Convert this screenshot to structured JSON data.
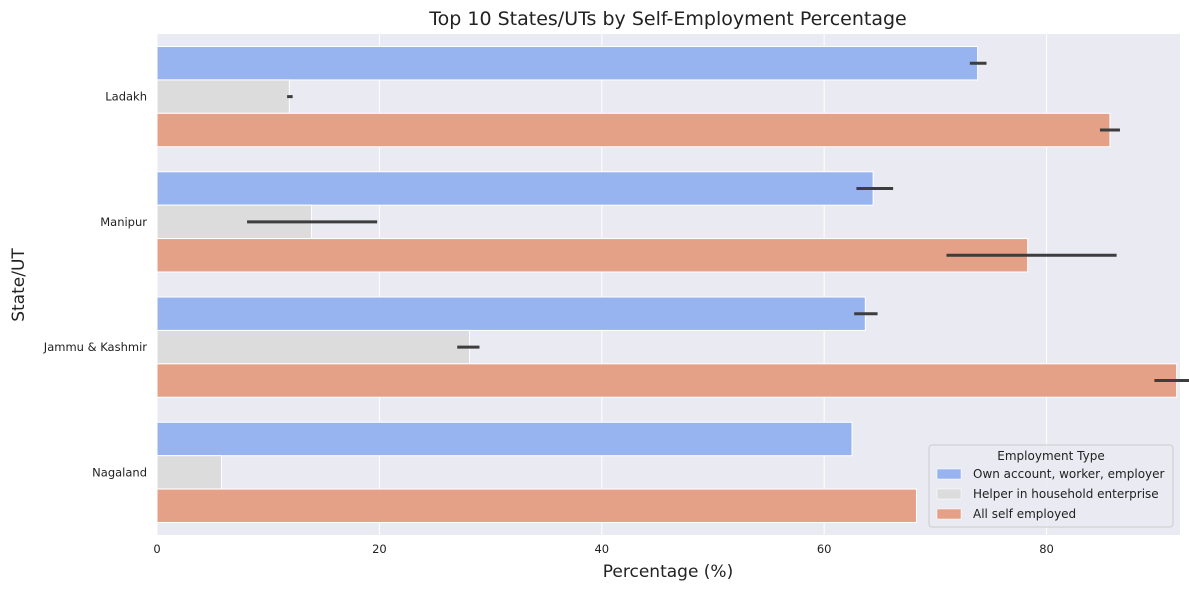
{
  "chart_data": {
    "type": "bar",
    "orientation": "horizontal",
    "title": "Top 10 States/UTs by Self-Employment Percentage",
    "xlabel": "Percentage (%)",
    "ylabel": "State/UT",
    "xlim": [
      0,
      92
    ],
    "xticks": [
      0,
      20,
      40,
      60,
      80
    ],
    "grid": true,
    "categories": [
      "Ladakh",
      "Manipur",
      "Jammu & Kashmir",
      "Nagaland"
    ],
    "series": [
      {
        "name": "Own account, worker, employer",
        "color": "#97b4f0",
        "values": [
          73.8,
          64.4,
          63.7,
          62.5
        ],
        "error": [
          [
            73.1,
            74.6
          ],
          [
            62.9,
            66.2
          ],
          [
            62.7,
            64.8
          ],
          null
        ]
      },
      {
        "name": "Helper in household enterprise",
        "color": "#dcdcdc",
        "values": [
          11.9,
          13.9,
          28.1,
          5.8
        ],
        "error": [
          [
            11.7,
            12.2
          ],
          [
            8.1,
            19.8
          ],
          [
            27.0,
            29.0
          ],
          null
        ]
      },
      {
        "name": "All self employed",
        "color": "#e5a188",
        "values": [
          85.7,
          78.3,
          91.7,
          68.3
        ],
        "error": [
          [
            84.8,
            86.6
          ],
          [
            71.0,
            86.3
          ],
          [
            89.7,
            93.7
          ],
          null
        ]
      }
    ],
    "legend": {
      "title": "Employment Type",
      "placement": "bottom-right"
    }
  }
}
